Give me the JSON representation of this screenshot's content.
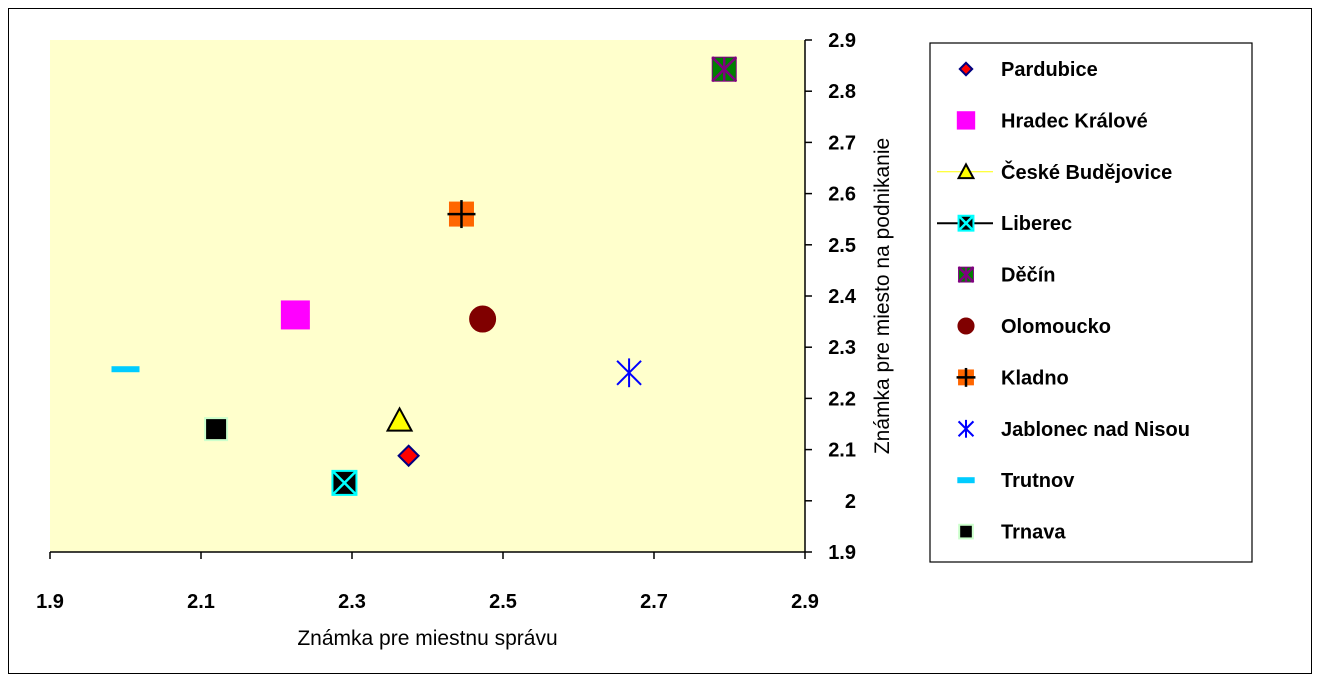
{
  "chart_data": {
    "type": "scatter",
    "title": "",
    "xlabel": "Známka pre miestnu správu",
    "ylabel": "Známka pre miesto na podnikanie",
    "xlim": [
      1.9,
      2.9
    ],
    "ylim": [
      1.9,
      2.9
    ],
    "xticks": [
      "1.9",
      "2.1",
      "2.3",
      "2.5",
      "2.7",
      "2.9"
    ],
    "yticks": [
      "1.9",
      "2",
      "2.1",
      "2.2",
      "2.3",
      "2.4",
      "2.5",
      "2.6",
      "2.7",
      "2.8",
      "2.9"
    ],
    "y_axis_side": "right",
    "grid": false,
    "plot_background": "#ffffcc",
    "legend_position": "right",
    "series": [
      {
        "name": "Pardubice",
        "x": 2.375,
        "y": 2.088,
        "marker": "diamond",
        "color": "#ff0000",
        "edge": "#000080"
      },
      {
        "name": "Hradec Králové",
        "x": 2.225,
        "y": 2.363,
        "marker": "square",
        "color": "#ff00ff",
        "edge": "#ff00ff"
      },
      {
        "name": "České Budějovice",
        "x": 2.363,
        "y": 2.157,
        "marker": "triangle",
        "color": "#ffff00",
        "edge": "#000000"
      },
      {
        "name": "Liberec",
        "x": 2.29,
        "y": 2.035,
        "marker": "x-square",
        "color": "#000000",
        "edge": "#00ffff"
      },
      {
        "name": "Děčín",
        "x": 2.793,
        "y": 2.843,
        "marker": "star-square",
        "color": "#008000",
        "edge": "#800080"
      },
      {
        "name": "Olomoucko",
        "x": 2.473,
        "y": 2.355,
        "marker": "circle",
        "color": "#800000",
        "edge": "#800000"
      },
      {
        "name": "Kladno",
        "x": 2.445,
        "y": 2.56,
        "marker": "plus-square",
        "color": "#ff6600",
        "edge": "#000000"
      },
      {
        "name": "Jablonec nad Nisou",
        "x": 2.667,
        "y": 2.25,
        "marker": "asterisk",
        "color": "#0000ff",
        "edge": "#0000ff"
      },
      {
        "name": "Trutnov",
        "x": 2.0,
        "y": 2.257,
        "marker": "dash",
        "color": "#00ccff",
        "edge": "#00ccff"
      },
      {
        "name": "Trnava",
        "x": 2.12,
        "y": 2.14,
        "marker": "square-small",
        "color": "#000000",
        "edge": "#ccffcc"
      }
    ]
  }
}
